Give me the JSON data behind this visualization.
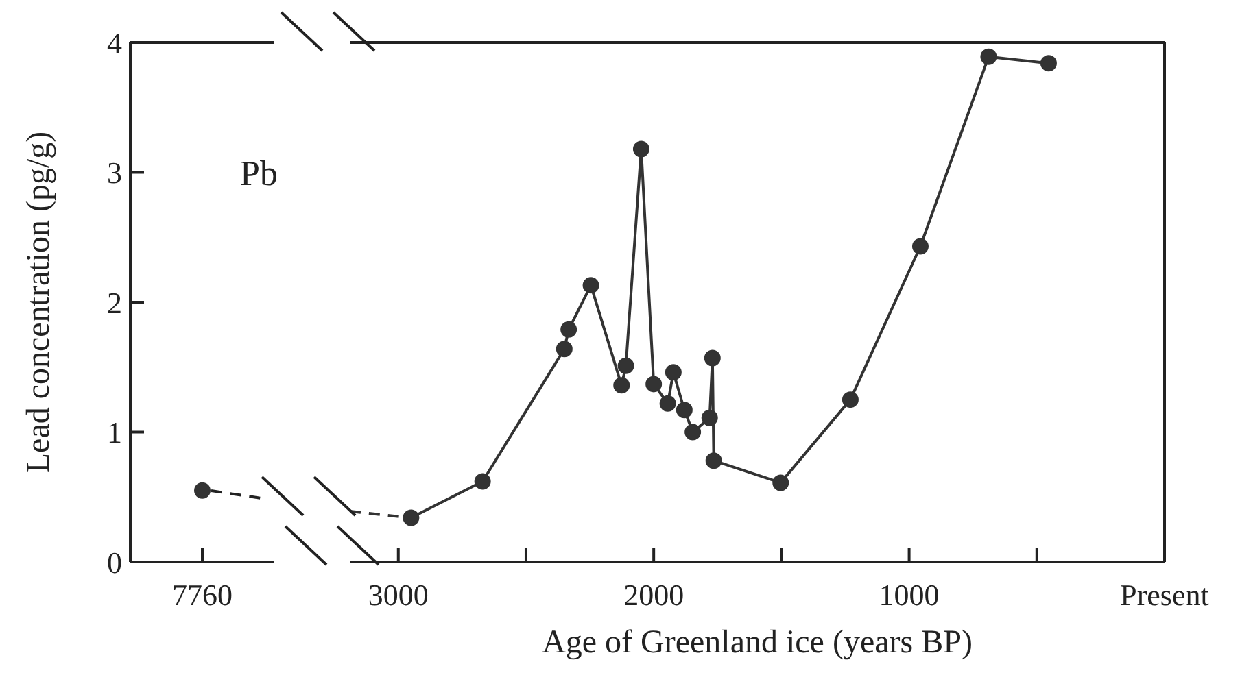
{
  "chart_data": [
    {
      "type": "line",
      "ylabel": "Lead concentration (pg/g)",
      "annotations": [
        "Pb"
      ],
      "categories": [
        "7760"
      ],
      "ylim": [
        0,
        4
      ],
      "yticks": [
        0,
        1,
        2,
        3,
        4
      ],
      "series": [
        {
          "type": "line",
          "color": "#333333",
          "values": [
            0.55
          ],
          "marker": "circle"
        }
      ]
    },
    {
      "type": "line",
      "tick_labels": "x",
      "xlabel": "Age of Greenland ice (years BP)",
      "xlim": [
        3190,
        0
      ],
      "xticks": [
        3000,
        {
          "value": 2500,
          "label": null
        },
        2000,
        {
          "value": 1500,
          "label": null
        },
        1000,
        {
          "value": 500,
          "label": null
        },
        {
          "value": 0,
          "label": "Present"
        }
      ],
      "ylim": [
        0,
        4
      ],
      "yticks": [
        0,
        1,
        2,
        3,
        4
      ],
      "series": [
        {
          "type": "line",
          "color": "#333333",
          "x": [
            3190,
            2950
          ],
          "values": [
            0.39,
            0.34
          ],
          "line_style": "dashed"
        },
        {
          "type": "line",
          "color": "#333333",
          "x": [
            2950,
            2670,
            2350,
            2333,
            2246,
            2126,
            2109,
            2049,
            2000,
            1945,
            1923,
            1880,
            1847,
            1781,
            1770,
            1765,
            1503,
            1230,
            956,
            689,
            454
          ],
          "values": [
            0.34,
            0.62,
            1.64,
            1.79,
            2.13,
            1.36,
            1.51,
            3.18,
            1.37,
            1.22,
            1.46,
            1.17,
            1.0,
            1.11,
            1.57,
            0.78,
            0.61,
            1.25,
            2.43,
            3.89,
            3.84
          ],
          "marker": "circle",
          "line_style": "solid"
        }
      ]
    }
  ]
}
